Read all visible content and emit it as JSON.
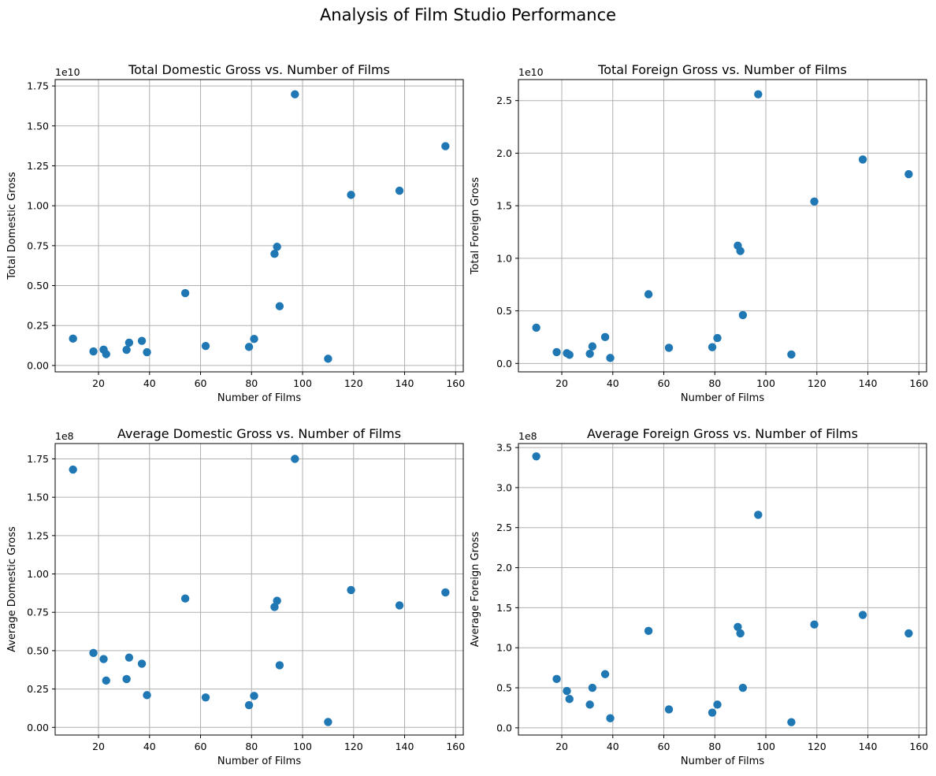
{
  "figure": {
    "suptitle": "Analysis of Film Studio Performance"
  },
  "colors": {
    "points": "#1f77b4",
    "grid": "#b0b0b0"
  },
  "chart_data": [
    {
      "type": "scatter",
      "title": "Total Domestic Gross vs. Number of Films",
      "xlabel": "Number of Films",
      "ylabel": "Total Domestic Gross",
      "offset_text": "1e10",
      "xlim": [
        3,
        163
      ],
      "ylim": [
        -0.04,
        1.79
      ],
      "xticks": [
        20,
        40,
        60,
        80,
        100,
        120,
        140,
        160
      ],
      "yticks": [
        0.0,
        0.25,
        0.5,
        0.75,
        1.0,
        1.25,
        1.5,
        1.75
      ],
      "ytick_labels": [
        "0.00",
        "0.25",
        "0.50",
        "0.75",
        "1.00",
        "1.25",
        "1.50",
        "1.75"
      ],
      "grid": true,
      "series": [
        {
          "x": [
            10,
            18,
            22,
            23,
            31,
            32,
            37,
            39,
            54,
            62,
            79,
            81,
            89,
            90,
            91,
            97,
            110,
            119,
            138,
            156
          ],
          "y": [
            0.168,
            0.088,
            0.099,
            0.071,
            0.098,
            0.143,
            0.154,
            0.083,
            0.453,
            0.122,
            0.116,
            0.166,
            0.699,
            0.743,
            0.371,
            1.698,
            0.042,
            1.068,
            1.094,
            1.373
          ]
        }
      ]
    },
    {
      "type": "scatter",
      "title": "Total Foreign Gross vs. Number of Films",
      "xlabel": "Number of Films",
      "ylabel": "Total Foreign Gross",
      "offset_text": "1e10",
      "xlim": [
        3,
        163
      ],
      "ylim": [
        -0.08,
        2.7
      ],
      "xticks": [
        20,
        40,
        60,
        80,
        100,
        120,
        140,
        160
      ],
      "yticks": [
        0.0,
        0.5,
        1.0,
        1.5,
        2.0,
        2.5
      ],
      "ytick_labels": [
        "0.0",
        "0.5",
        "1.0",
        "1.5",
        "2.0",
        "2.5"
      ],
      "grid": true,
      "series": [
        {
          "x": [
            10,
            18,
            22,
            23,
            31,
            32,
            37,
            39,
            54,
            62,
            79,
            81,
            89,
            90,
            91,
            97,
            110,
            119,
            138,
            156
          ],
          "y": [
            0.34,
            0.108,
            0.097,
            0.082,
            0.092,
            0.162,
            0.251,
            0.052,
            0.658,
            0.149,
            0.155,
            0.242,
            1.12,
            1.07,
            0.46,
            2.56,
            0.085,
            1.54,
            1.94,
            1.8
          ]
        }
      ]
    },
    {
      "type": "scatter",
      "title": "Average Domestic Gross vs. Number of Films",
      "xlabel": "Number of Films",
      "ylabel": "Average Domestic Gross",
      "offset_text": "1e8",
      "xlim": [
        3,
        163
      ],
      "ylim": [
        -0.05,
        1.85
      ],
      "xticks": [
        20,
        40,
        60,
        80,
        100,
        120,
        140,
        160
      ],
      "yticks": [
        0.0,
        0.25,
        0.5,
        0.75,
        1.0,
        1.25,
        1.5,
        1.75
      ],
      "ytick_labels": [
        "0.00",
        "0.25",
        "0.50",
        "0.75",
        "1.00",
        "1.25",
        "1.50",
        "1.75"
      ],
      "grid": true,
      "series": [
        {
          "x": [
            10,
            18,
            22,
            23,
            31,
            32,
            37,
            39,
            54,
            62,
            79,
            81,
            89,
            90,
            91,
            97,
            110,
            119,
            138,
            156
          ],
          "y": [
            1.68,
            0.485,
            0.445,
            0.305,
            0.315,
            0.455,
            0.415,
            0.21,
            0.84,
            0.195,
            0.145,
            0.205,
            0.785,
            0.825,
            0.405,
            1.75,
            0.035,
            0.895,
            0.795,
            0.88
          ]
        }
      ]
    },
    {
      "type": "scatter",
      "title": "Average Foreign Gross vs. Number of Films",
      "xlabel": "Number of Films",
      "ylabel": "Average Foreign Gross",
      "offset_text": "1e8",
      "xlim": [
        3,
        163
      ],
      "ylim": [
        -0.09,
        3.55
      ],
      "xticks": [
        20,
        40,
        60,
        80,
        100,
        120,
        140,
        160
      ],
      "yticks": [
        0.0,
        0.5,
        1.0,
        1.5,
        2.0,
        2.5,
        3.0,
        3.5
      ],
      "ytick_labels": [
        "0.0",
        "0.5",
        "1.0",
        "1.5",
        "2.0",
        "2.5",
        "3.0",
        "3.5"
      ],
      "grid": true,
      "series": [
        {
          "x": [
            10,
            18,
            22,
            23,
            31,
            32,
            37,
            39,
            54,
            62,
            79,
            81,
            89,
            90,
            91,
            97,
            110,
            119,
            138,
            156
          ],
          "y": [
            3.39,
            0.61,
            0.46,
            0.36,
            0.29,
            0.5,
            0.67,
            0.12,
            1.21,
            0.23,
            0.19,
            0.29,
            1.26,
            1.18,
            0.5,
            2.66,
            0.07,
            1.29,
            1.41,
            1.18
          ]
        }
      ]
    }
  ]
}
